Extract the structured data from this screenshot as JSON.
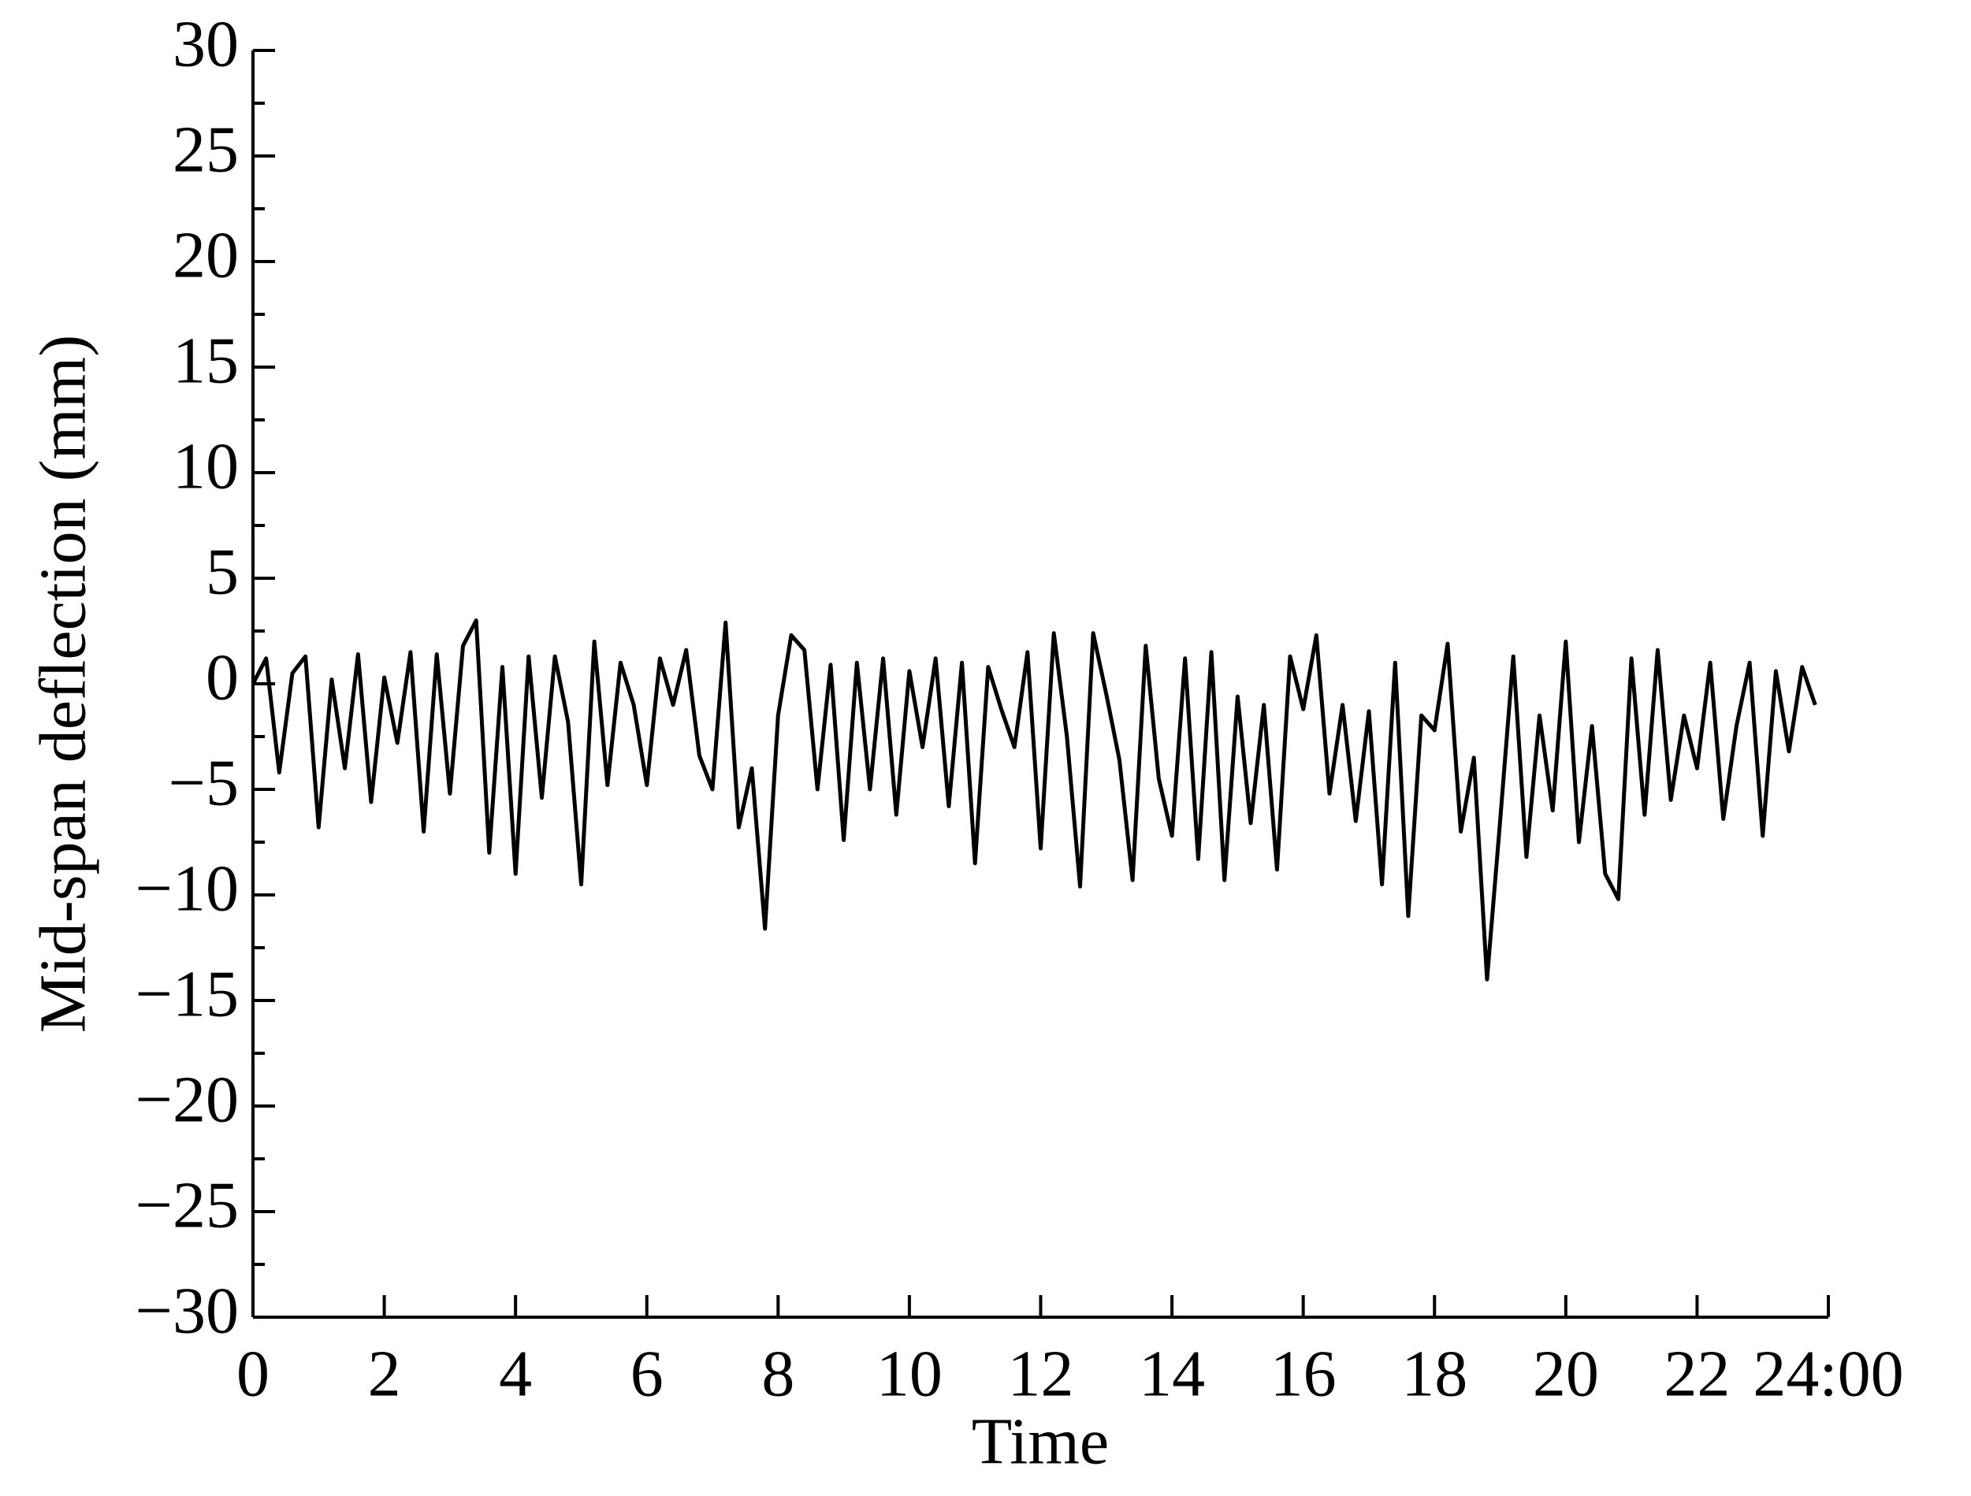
{
  "chart_data": {
    "type": "line",
    "x_label": "Time",
    "y_label": "Mid-span deflection (mm)",
    "x": [
      0,
      0.2,
      0.4,
      0.6,
      0.8,
      1,
      1.2,
      1.4,
      1.6,
      1.8,
      2,
      2.2,
      2.4,
      2.6,
      2.8,
      3,
      3.2,
      3.4,
      3.6,
      3.8,
      4,
      4.2,
      4.4,
      4.6,
      4.8,
      5,
      5.2,
      5.4,
      5.6,
      5.8,
      6,
      6.2,
      6.4,
      6.6,
      6.8,
      7,
      7.2,
      7.4,
      7.6,
      7.8,
      8,
      8.2,
      8.4,
      8.6,
      8.8,
      9,
      9.2,
      9.4,
      9.6,
      9.8,
      10,
      10.2,
      10.4,
      10.6,
      10.8,
      11,
      11.2,
      11.4,
      11.6,
      11.8,
      12,
      12.2,
      12.4,
      12.6,
      12.8,
      13,
      13.2,
      13.4,
      13.6,
      13.8,
      14,
      14.2,
      14.4,
      14.6,
      14.8,
      15,
      15.2,
      15.4,
      15.6,
      15.8,
      16,
      16.2,
      16.4,
      16.6,
      16.8,
      17,
      17.2,
      17.4,
      17.6,
      17.8,
      18,
      18.2,
      18.4,
      18.6,
      18.8,
      19,
      19.2,
      19.4,
      19.6,
      19.8,
      20,
      20.2,
      20.4,
      20.6,
      20.8,
      21,
      21.2,
      21.4,
      21.6,
      21.8,
      22,
      22.2,
      22.4,
      22.6,
      22.8,
      23,
      23.2,
      23.4,
      23.6,
      23.8
    ],
    "series": [
      {
        "name": "Mid-span deflection",
        "color": "#000000",
        "values": [
          0,
          1.2,
          -4.2,
          0.5,
          1.3,
          -6.8,
          0.2,
          -4.0,
          1.4,
          -5.6,
          0.3,
          -2.8,
          1.5,
          -7.0,
          1.4,
          -5.2,
          1.8,
          3.0,
          -8.0,
          0.8,
          -9.0,
          1.3,
          -5.4,
          1.3,
          -1.8,
          -9.5,
          2.0,
          -4.8,
          1.0,
          -1.0,
          -4.8,
          1.2,
          -1.0,
          1.6,
          -3.4,
          -5.0,
          2.9,
          -6.8,
          -4.0,
          -11.6,
          -1.5,
          2.3,
          1.6,
          -5.0,
          0.9,
          -7.4,
          1.0,
          -5.0,
          1.2,
          -6.2,
          0.6,
          -3.0,
          1.2,
          -5.8,
          1.0,
          -8.5,
          0.8,
          -1.2,
          -3.0,
          1.5,
          -7.8,
          2.4,
          -2.5,
          -9.6,
          2.4,
          -0.5,
          -3.6,
          -9.3,
          1.8,
          -4.5,
          -7.2,
          1.2,
          -8.3,
          1.5,
          -9.3,
          -0.6,
          -6.6,
          -1.0,
          -8.8,
          1.3,
          -1.2,
          2.3,
          -5.2,
          -1.0,
          -6.5,
          -1.3,
          -9.5,
          1.0,
          -11.0,
          -1.5,
          -2.2,
          1.9,
          -7.0,
          -3.5,
          -14.0,
          -6.5,
          1.3,
          -8.2,
          -1.5,
          -6.0,
          2.0,
          -7.5,
          -2.0,
          -9.0,
          -10.2,
          1.2,
          -6.2,
          1.6,
          -5.5,
          -1.5,
          -4.0,
          1.0,
          -6.4,
          -2.0,
          1.0,
          -7.2,
          0.6,
          -3.2,
          0.8,
          -1.0
        ]
      }
    ],
    "xlim": [
      0,
      24
    ],
    "xticks": [
      0,
      2,
      4,
      6,
      8,
      10,
      12,
      14,
      16,
      18,
      20,
      22,
      {
        "value": 24,
        "label": "24:00"
      }
    ],
    "ylim": [
      -30,
      30
    ],
    "yticks": [
      {
        "value": -30,
        "label": "−30"
      },
      {
        "value": -25,
        "label": "−25"
      },
      {
        "value": -20,
        "label": "−20"
      },
      {
        "value": -15,
        "label": "−15"
      },
      {
        "value": -10,
        "label": "−10"
      },
      {
        "value": -5,
        "label": "−5"
      },
      0,
      5,
      10,
      15,
      20,
      25,
      30
    ]
  }
}
